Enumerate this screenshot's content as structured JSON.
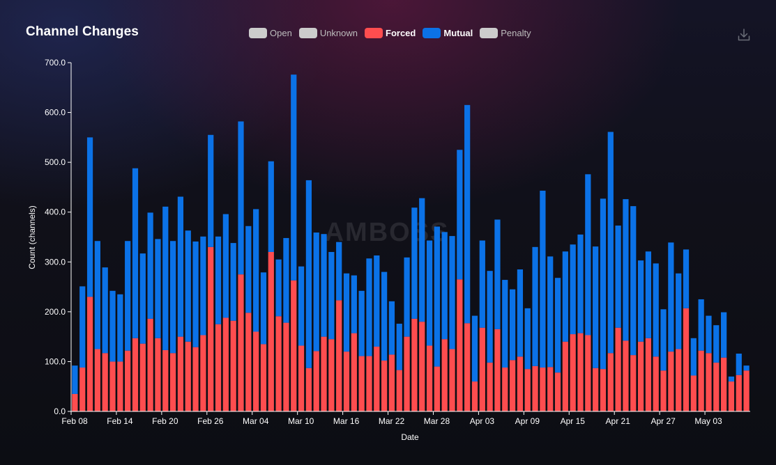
{
  "chart_data": {
    "type": "bar",
    "stacked": true,
    "title": "Channel Changes",
    "xlabel": "Date",
    "ylabel": "Count (channels)",
    "ylim": [
      0,
      700
    ],
    "yticks": [
      "0.0",
      "100.0",
      "200.0",
      "300.0",
      "400.0",
      "500.0",
      "600.0",
      "700.0"
    ],
    "xtick_labels": [
      {
        "label": "Feb 08",
        "index": 0
      },
      {
        "label": "Feb 14",
        "index": 6
      },
      {
        "label": "Feb 20",
        "index": 12
      },
      {
        "label": "Feb 26",
        "index": 18
      },
      {
        "label": "Mar 04",
        "index": 24
      },
      {
        "label": "Mar 10",
        "index": 30
      },
      {
        "label": "Mar 16",
        "index": 36
      },
      {
        "label": "Mar 22",
        "index": 42
      },
      {
        "label": "Mar 28",
        "index": 48
      },
      {
        "label": "Apr 03",
        "index": 54
      },
      {
        "label": "Apr 09",
        "index": 60
      },
      {
        "label": "Apr 15",
        "index": 66
      },
      {
        "label": "Apr 21",
        "index": 72
      },
      {
        "label": "Apr 27",
        "index": 78
      },
      {
        "label": "May 03",
        "index": 84
      }
    ],
    "legend": [
      {
        "name": "Open",
        "color": "#cccccc",
        "active": false
      },
      {
        "name": "Unknown",
        "color": "#cccccc",
        "active": false
      },
      {
        "name": "Forced",
        "color": "#fe4d4f",
        "active": true
      },
      {
        "name": "Mutual",
        "color": "#0b72e7",
        "active": true
      },
      {
        "name": "Penalty",
        "color": "#cccccc",
        "active": false
      }
    ],
    "legend_position": "top-center",
    "grid": false,
    "series": [
      {
        "name": "Forced",
        "color": "#fe4d4f",
        "values": [
          35,
          88,
          230,
          125,
          117,
          100,
          100,
          122,
          147,
          136,
          186,
          147,
          123,
          117,
          150,
          140,
          129,
          153,
          330,
          175,
          188,
          182,
          275,
          198,
          160,
          135,
          320,
          191,
          178,
          263,
          132,
          87,
          121,
          150,
          145,
          223,
          120,
          157,
          111,
          111,
          130,
          102,
          114,
          83,
          150,
          186,
          180,
          132,
          90,
          145,
          125,
          265,
          177,
          60,
          168,
          98,
          165,
          88,
          103,
          110,
          85,
          91,
          88,
          89,
          78,
          140,
          155,
          157,
          153,
          87,
          85,
          117,
          168,
          142,
          113,
          140,
          147,
          110,
          82,
          120,
          125,
          207,
          72,
          122,
          117,
          98,
          108,
          60,
          73,
          82
        ]
      },
      {
        "name": "Mutual",
        "color": "#0b72e7",
        "values": [
          57,
          163,
          320,
          217,
          172,
          142,
          135,
          220,
          341,
          181,
          213,
          199,
          288,
          225,
          281,
          223,
          212,
          198,
          225,
          176,
          208,
          156,
          307,
          174,
          246,
          144,
          182,
          114,
          170,
          413,
          159,
          377,
          238,
          206,
          175,
          117,
          157,
          116,
          131,
          196,
          183,
          178,
          107,
          93,
          159,
          223,
          248,
          211,
          281,
          215,
          227,
          260,
          438,
          132,
          175,
          184,
          220,
          176,
          142,
          175,
          122,
          239,
          355,
          222,
          190,
          181,
          180,
          198,
          323,
          244,
          342,
          444,
          205,
          284,
          299,
          163,
          174,
          187,
          123,
          219,
          152,
          118,
          75,
          103,
          75,
          75,
          91,
          10,
          43,
          10
        ]
      }
    ]
  },
  "watermark": "AMBOSS",
  "download_icon": "download-icon"
}
